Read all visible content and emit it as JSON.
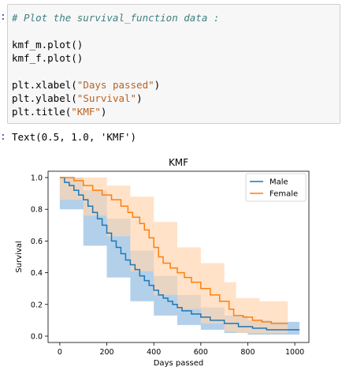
{
  "cell": {
    "in_prompt": ":",
    "out_prompt": ":",
    "lines": [
      {
        "type": "comment",
        "text": "# Plot the survival_function data :"
      },
      {
        "type": "blank",
        "text": ""
      },
      {
        "type": "code",
        "text": "kmf_m.plot()"
      },
      {
        "type": "code",
        "text": "kmf_f.plot()"
      },
      {
        "type": "blank",
        "text": ""
      },
      {
        "type": "code_str",
        "pre": "plt.xlabel(",
        "str": "\"Days passed\"",
        "post": ")"
      },
      {
        "type": "code_str",
        "pre": "plt.ylabel(",
        "str": "\"Survival\"",
        "post": ")"
      },
      {
        "type": "code_str",
        "pre": "plt.title(",
        "str": "\"KMF\"",
        "post": ")"
      }
    ],
    "output_text": "Text(0.5, 1.0, 'KMF')"
  },
  "colors": {
    "male": "#1f77b4",
    "female": "#ff7f0e",
    "male_band": "#a6c8e6",
    "female_band": "#ffd5b0"
  },
  "chart_data": {
    "type": "line",
    "title": "KMF",
    "xlabel": "Days passed",
    "ylabel": "Survival",
    "xlim": [
      -50,
      1060
    ],
    "ylim": [
      -0.04,
      1.04
    ],
    "xticks": [
      0,
      200,
      400,
      600,
      800,
      1000
    ],
    "yticks": [
      0.0,
      0.2,
      0.4,
      0.6,
      0.8,
      1.0
    ],
    "legend_position": "top-right",
    "series": [
      {
        "name": "Male",
        "steps": [
          [
            0,
            1.0
          ],
          [
            20,
            0.97
          ],
          [
            40,
            0.95
          ],
          [
            60,
            0.92
          ],
          [
            80,
            0.89
          ],
          [
            100,
            0.86
          ],
          [
            120,
            0.82
          ],
          [
            140,
            0.78
          ],
          [
            160,
            0.74
          ],
          [
            180,
            0.7
          ],
          [
            200,
            0.65
          ],
          [
            220,
            0.6
          ],
          [
            240,
            0.56
          ],
          [
            260,
            0.52
          ],
          [
            280,
            0.48
          ],
          [
            300,
            0.45
          ],
          [
            320,
            0.42
          ],
          [
            340,
            0.38
          ],
          [
            360,
            0.35
          ],
          [
            380,
            0.32
          ],
          [
            400,
            0.29
          ],
          [
            420,
            0.26
          ],
          [
            440,
            0.24
          ],
          [
            460,
            0.22
          ],
          [
            480,
            0.2
          ],
          [
            500,
            0.18
          ],
          [
            520,
            0.16
          ],
          [
            560,
            0.14
          ],
          [
            600,
            0.12
          ],
          [
            640,
            0.1
          ],
          [
            700,
            0.08
          ],
          [
            760,
            0.06
          ],
          [
            820,
            0.05
          ],
          [
            880,
            0.04
          ],
          [
            1020,
            0.04
          ]
        ],
        "ci_upper": [
          [
            0,
            1.0
          ],
          [
            100,
            0.92
          ],
          [
            200,
            0.74
          ],
          [
            300,
            0.54
          ],
          [
            400,
            0.38
          ],
          [
            500,
            0.26
          ],
          [
            600,
            0.18
          ],
          [
            700,
            0.13
          ],
          [
            800,
            0.1
          ],
          [
            900,
            0.09
          ],
          [
            1020,
            0.09
          ]
        ],
        "ci_lower": [
          [
            0,
            0.95
          ],
          [
            100,
            0.8
          ],
          [
            200,
            0.57
          ],
          [
            300,
            0.37
          ],
          [
            400,
            0.22
          ],
          [
            500,
            0.13
          ],
          [
            600,
            0.07
          ],
          [
            700,
            0.04
          ],
          [
            800,
            0.02
          ],
          [
            900,
            0.01
          ],
          [
            1020,
            0.01
          ]
        ]
      },
      {
        "name": "Female",
        "steps": [
          [
            0,
            1.0
          ],
          [
            60,
            0.98
          ],
          [
            100,
            0.95
          ],
          [
            140,
            0.92
          ],
          [
            180,
            0.89
          ],
          [
            220,
            0.86
          ],
          [
            260,
            0.82
          ],
          [
            290,
            0.78
          ],
          [
            310,
            0.75
          ],
          [
            340,
            0.71
          ],
          [
            360,
            0.67
          ],
          [
            380,
            0.62
          ],
          [
            400,
            0.56
          ],
          [
            420,
            0.5
          ],
          [
            440,
            0.46
          ],
          [
            470,
            0.43
          ],
          [
            500,
            0.4
          ],
          [
            530,
            0.37
          ],
          [
            560,
            0.34
          ],
          [
            600,
            0.3
          ],
          [
            640,
            0.26
          ],
          [
            680,
            0.22
          ],
          [
            720,
            0.17
          ],
          [
            740,
            0.13
          ],
          [
            780,
            0.12
          ],
          [
            820,
            0.1
          ],
          [
            860,
            0.09
          ],
          [
            900,
            0.08
          ],
          [
            970,
            0.08
          ]
        ],
        "ci_upper": [
          [
            0,
            1.0
          ],
          [
            100,
            1.0
          ],
          [
            200,
            0.95
          ],
          [
            300,
            0.88
          ],
          [
            400,
            0.72
          ],
          [
            500,
            0.56
          ],
          [
            600,
            0.46
          ],
          [
            700,
            0.34
          ],
          [
            750,
            0.24
          ],
          [
            850,
            0.22
          ],
          [
            970,
            0.22
          ]
        ],
        "ci_lower": [
          [
            0,
            0.92
          ],
          [
            100,
            0.86
          ],
          [
            200,
            0.76
          ],
          [
            300,
            0.63
          ],
          [
            400,
            0.41
          ],
          [
            500,
            0.26
          ],
          [
            600,
            0.17
          ],
          [
            700,
            0.08
          ],
          [
            750,
            0.03
          ],
          [
            850,
            0.02
          ],
          [
            970,
            0.02
          ]
        ]
      }
    ]
  }
}
